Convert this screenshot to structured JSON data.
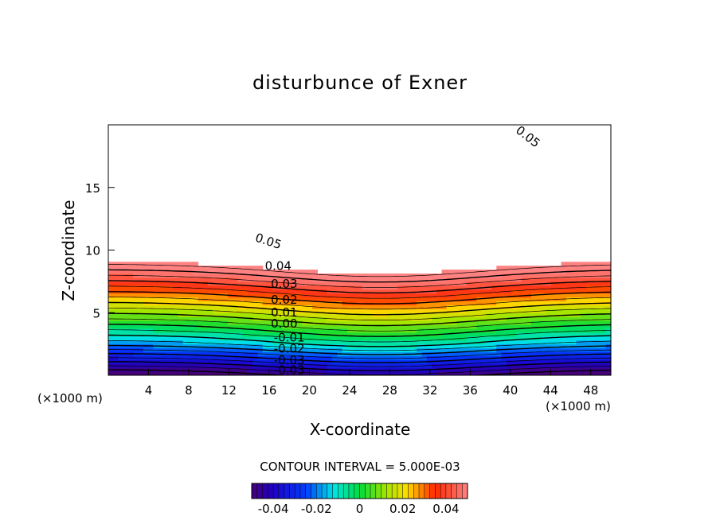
{
  "chart_data": {
    "type": "contour",
    "title": "disturbunce of Exner",
    "xlabel": "X-coordinate",
    "ylabel": "Z-coordinate",
    "x_unit": "(×1000 m)",
    "x_unit_right": "(×1000 m)",
    "xlim": [
      0,
      50
    ],
    "ylim": [
      0,
      20
    ],
    "x_ticks": [
      4,
      8,
      12,
      16,
      20,
      24,
      28,
      32,
      36,
      40,
      44,
      48
    ],
    "y_ticks": [
      5,
      10,
      15
    ],
    "contour_interval_label": "CONTOUR INTERVAL = 5.000E-03",
    "contour_interval": 0.005,
    "value_range": [
      -0.05,
      0.05
    ],
    "contour_labels": [
      {
        "text": "0.05",
        "value": 0.05,
        "x": 41.5,
        "z": 18.8
      },
      {
        "text": "0.05",
        "value": 0.05,
        "x": 15.8,
        "z": 10.4
      },
      {
        "text": "0.04",
        "value": 0.04,
        "x": 16.9,
        "z": 8.4
      },
      {
        "text": "0.03",
        "value": 0.03,
        "x": 17.5,
        "z": 7.0
      },
      {
        "text": "0.02",
        "value": 0.02,
        "x": 17.5,
        "z": 5.7
      },
      {
        "text": "0.01",
        "value": 0.01,
        "x": 17.5,
        "z": 4.7
      },
      {
        "text": "0.00",
        "value": 0.0,
        "x": 17.5,
        "z": 3.8
      },
      {
        "text": "-0.01",
        "value": -0.01,
        "x": 18.0,
        "z": 2.7
      },
      {
        "text": "-0.02",
        "value": -0.02,
        "x": 18.0,
        "z": 1.8
      },
      {
        "text": "-0.03",
        "value": -0.03,
        "x": 18.0,
        "z": 0.9
      },
      {
        "text": "-0.03",
        "value": -0.03,
        "x": 18.0,
        "z": 0.1
      }
    ],
    "colorbar": {
      "ticks": [
        {
          "text": "-0.04",
          "value": -0.04
        },
        {
          "text": "-0.02",
          "value": -0.02
        },
        {
          "text": "0",
          "value": 0
        },
        {
          "text": "0.02",
          "value": 0.02
        },
        {
          "text": "0.04",
          "value": 0.04
        }
      ]
    },
    "grid": false,
    "legend": "colorbar-bottom"
  }
}
